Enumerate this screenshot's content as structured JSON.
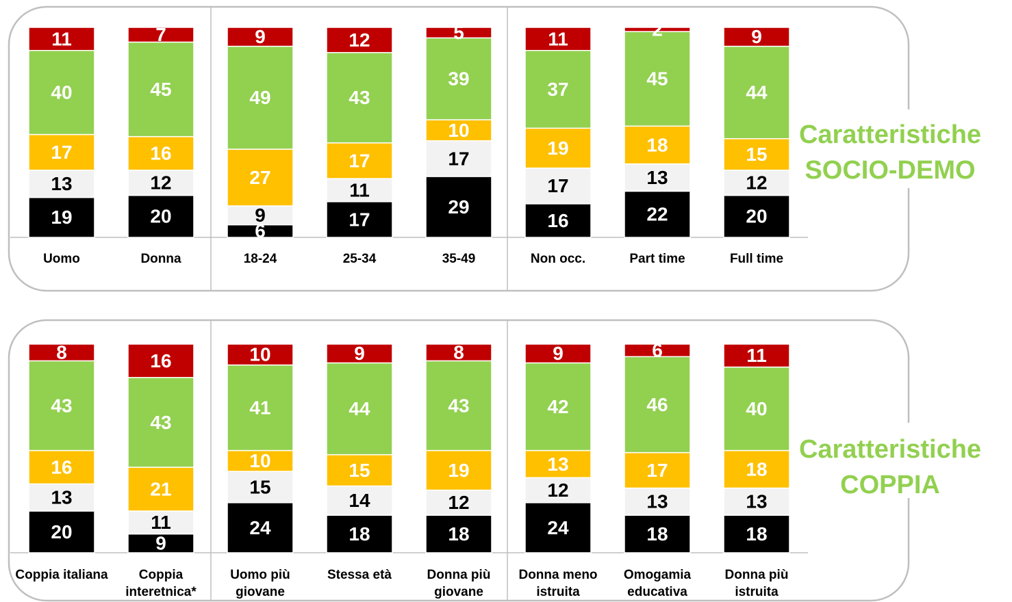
{
  "chart_data": [
    {
      "type": "stacked_bar",
      "annotation": [
        "Caratteristiche",
        "SOCIO-DEMO"
      ],
      "categories": [
        "Uomo",
        "Donna",
        "18-24",
        "25-34",
        "35-49",
        "Non occ.",
        "Part time",
        "Full time"
      ],
      "ylim": [
        0,
        100
      ],
      "series": [
        {
          "color": "#000000",
          "values": [
            19,
            20,
            6,
            17,
            29,
            16,
            22,
            20
          ]
        },
        {
          "color": "#f2f2f2",
          "values": [
            13,
            12,
            9,
            11,
            17,
            17,
            13,
            12
          ]
        },
        {
          "color": "#ffc000",
          "values": [
            17,
            16,
            27,
            17,
            10,
            19,
            18,
            15
          ]
        },
        {
          "color": "#92d050",
          "values": [
            40,
            45,
            49,
            43,
            39,
            37,
            45,
            44
          ]
        },
        {
          "color": "#c00000",
          "values": [
            11,
            7,
            9,
            12,
            5,
            11,
            2,
            9
          ]
        }
      ]
    },
    {
      "type": "stacked_bar",
      "annotation": [
        "Caratteristiche",
        "COPPIA"
      ],
      "categories": [
        "Coppia italiana",
        "Coppia interetnica*",
        "Uomo più giovane",
        "Stessa età",
        "Donna più giovane",
        "Donna meno istruita",
        "Omogamia educativa",
        "Donna più istruita"
      ],
      "ylim": [
        0,
        100
      ],
      "series": [
        {
          "color": "#000000",
          "values": [
            20,
            9,
            24,
            18,
            18,
            24,
            18,
            18
          ]
        },
        {
          "color": "#f2f2f2",
          "values": [
            13,
            11,
            15,
            14,
            12,
            12,
            13,
            13
          ]
        },
        {
          "color": "#ffc000",
          "values": [
            16,
            21,
            10,
            15,
            19,
            13,
            17,
            18
          ]
        },
        {
          "color": "#92d050",
          "values": [
            43,
            43,
            41,
            44,
            43,
            42,
            46,
            40
          ]
        },
        {
          "color": "#c00000",
          "values": [
            8,
            16,
            10,
            9,
            8,
            9,
            6,
            11
          ]
        }
      ]
    }
  ]
}
